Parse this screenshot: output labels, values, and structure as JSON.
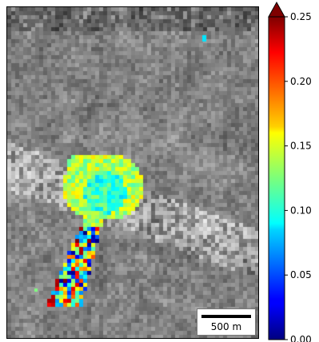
{
  "map": {
    "basemap": "grayscale satellite imagery",
    "overlay": "pixelated colored value overlay on elongated landslide-shaped region",
    "scalebar": {
      "label": "500 m"
    }
  },
  "colorbar": {
    "colormap": "jet",
    "min": 0.0,
    "max": 0.25,
    "extend": "max",
    "ticks": [
      {
        "value": 0.0,
        "label": "0.00"
      },
      {
        "value": 0.05,
        "label": "0.05"
      },
      {
        "value": 0.1,
        "label": "0.10"
      },
      {
        "value": 0.15,
        "label": "0.15"
      },
      {
        "value": 0.2,
        "label": "0.20"
      },
      {
        "value": 0.25,
        "label": "0.25"
      }
    ]
  }
}
